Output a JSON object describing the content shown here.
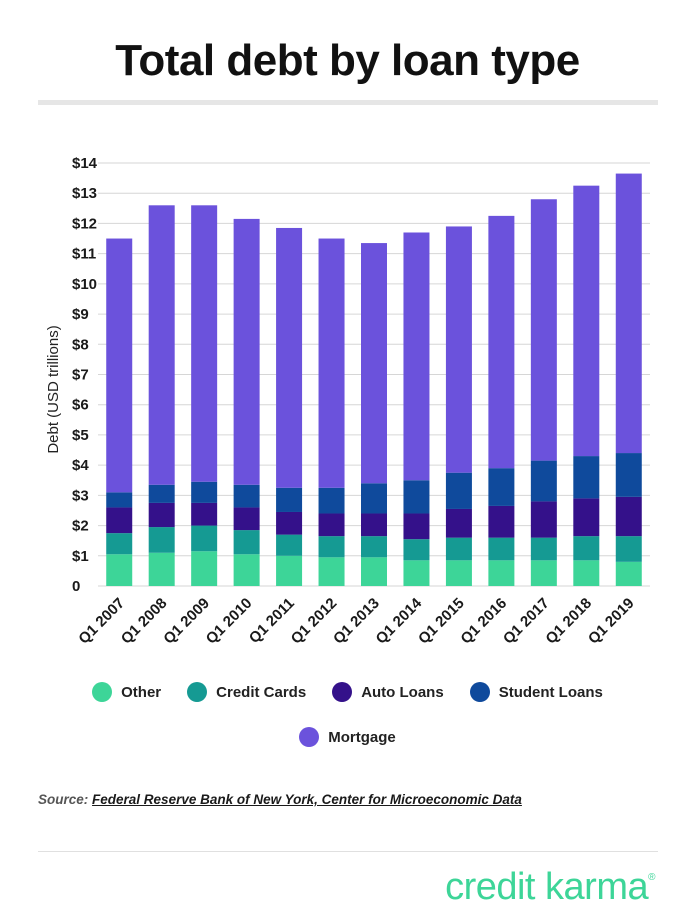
{
  "title": "Total debt by loan type",
  "source": {
    "label": "Source:",
    "link_text": "Federal Reserve Bank of New York, Center for Microeconomic Data"
  },
  "brand": {
    "name": "credit karma",
    "mark": "®"
  },
  "colors": {
    "other": "#3dd598",
    "credit_cards": "#159a93",
    "auto_loans": "#34118a",
    "student_loans": "#0f4a9c",
    "mortgage": "#6b52dc",
    "grid": "#d6d6d6"
  },
  "chart_data": {
    "type": "bar",
    "stacked": true,
    "title": "Total debt by loan type",
    "ylabel": "Debt (USD trillions)",
    "xlabel": "",
    "ylim": [
      0,
      14
    ],
    "yticks": [
      "0",
      "$1",
      "$2",
      "$3",
      "$4",
      "$5",
      "$6",
      "$7",
      "$8",
      "$9",
      "$10",
      "$11",
      "$12",
      "$13",
      "$14"
    ],
    "grid": true,
    "legend_position": "bottom",
    "categories": [
      "Q1 2007",
      "Q1 2008",
      "Q1 2009",
      "Q1 2010",
      "Q1 2011",
      "Q1 2012",
      "Q1 2013",
      "Q1 2014",
      "Q1 2015",
      "Q1 2016",
      "Q1 2017",
      "Q1 2018",
      "Q1 2019"
    ],
    "series": [
      {
        "name": "Other",
        "key": "other",
        "values": [
          1.05,
          1.1,
          1.15,
          1.05,
          1.0,
          0.95,
          0.95,
          0.85,
          0.85,
          0.85,
          0.85,
          0.85,
          0.8
        ]
      },
      {
        "name": "Credit Cards",
        "key": "credit_cards",
        "values": [
          0.7,
          0.85,
          0.85,
          0.8,
          0.7,
          0.7,
          0.7,
          0.7,
          0.75,
          0.75,
          0.75,
          0.8,
          0.85
        ]
      },
      {
        "name": "Auto Loans",
        "key": "auto_loans",
        "values": [
          0.85,
          0.8,
          0.75,
          0.75,
          0.75,
          0.75,
          0.75,
          0.85,
          0.95,
          1.05,
          1.2,
          1.25,
          1.3
        ]
      },
      {
        "name": "Student Loans",
        "key": "student_loans",
        "values": [
          0.5,
          0.6,
          0.7,
          0.75,
          0.8,
          0.85,
          1.0,
          1.1,
          1.2,
          1.25,
          1.35,
          1.4,
          1.45
        ]
      },
      {
        "name": "Mortgage",
        "key": "mortgage",
        "values": [
          8.4,
          9.25,
          9.15,
          8.8,
          8.6,
          8.25,
          7.95,
          8.2,
          8.15,
          8.35,
          8.65,
          8.95,
          9.25
        ]
      }
    ]
  }
}
